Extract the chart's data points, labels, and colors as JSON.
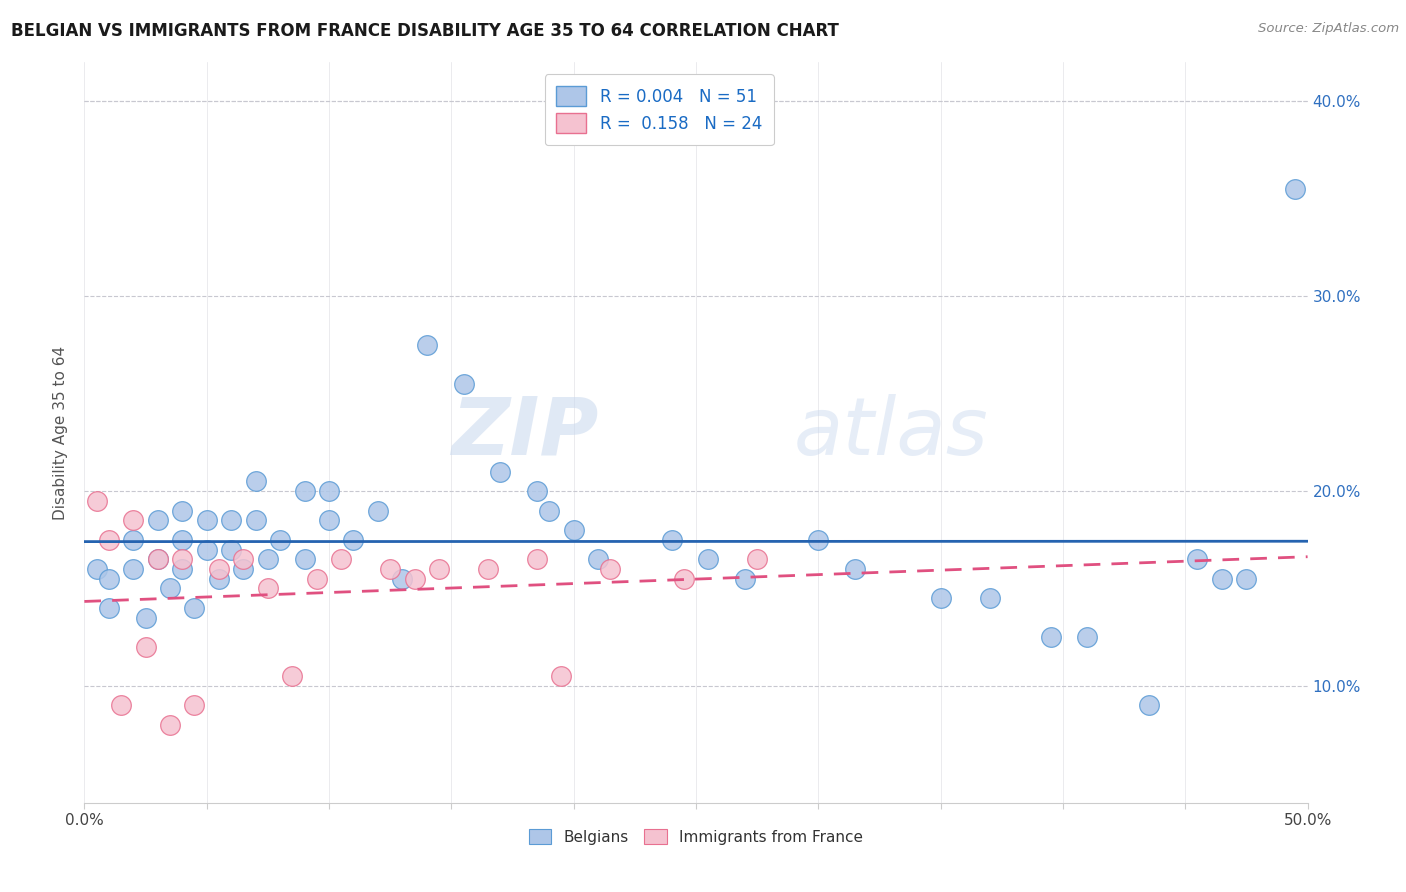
{
  "title": "BELGIAN VS IMMIGRANTS FROM FRANCE DISABILITY AGE 35 TO 64 CORRELATION CHART",
  "source": "Source: ZipAtlas.com",
  "ylabel": "Disability Age 35 to 64",
  "xlim": [
    0.0,
    0.5
  ],
  "ylim": [
    0.04,
    0.42
  ],
  "plot_ylim": [
    0.04,
    0.42
  ],
  "xticks": [
    0.0,
    0.05,
    0.1,
    0.15,
    0.2,
    0.25,
    0.3,
    0.35,
    0.4,
    0.45,
    0.5
  ],
  "xtick_labels_bottom": [
    "0.0%",
    "",
    "",
    "",
    "",
    "",
    "",
    "",
    "",
    "",
    "50.0%"
  ],
  "yticks": [
    0.1,
    0.2,
    0.3,
    0.4
  ],
  "ytick_labels_left": [
    "10.0%",
    "20.0%",
    "30.0%",
    "40.0%"
  ],
  "ytick_labels_right": [
    "10.0%",
    "20.0%",
    "30.0%",
    "40.0%"
  ],
  "belgians_x": [
    0.005,
    0.01,
    0.01,
    0.02,
    0.02,
    0.025,
    0.03,
    0.03,
    0.035,
    0.04,
    0.04,
    0.04,
    0.045,
    0.05,
    0.05,
    0.055,
    0.06,
    0.06,
    0.065,
    0.07,
    0.07,
    0.075,
    0.08,
    0.09,
    0.09,
    0.1,
    0.1,
    0.11,
    0.12,
    0.13,
    0.14,
    0.155,
    0.17,
    0.185,
    0.19,
    0.2,
    0.21,
    0.24,
    0.255,
    0.27,
    0.3,
    0.315,
    0.35,
    0.37,
    0.395,
    0.41,
    0.435,
    0.455,
    0.465,
    0.475,
    0.495
  ],
  "belgians_y": [
    0.16,
    0.155,
    0.14,
    0.175,
    0.16,
    0.135,
    0.185,
    0.165,
    0.15,
    0.19,
    0.175,
    0.16,
    0.14,
    0.185,
    0.17,
    0.155,
    0.185,
    0.17,
    0.16,
    0.205,
    0.185,
    0.165,
    0.175,
    0.165,
    0.2,
    0.2,
    0.185,
    0.175,
    0.19,
    0.155,
    0.275,
    0.255,
    0.21,
    0.2,
    0.19,
    0.18,
    0.165,
    0.175,
    0.165,
    0.155,
    0.175,
    0.16,
    0.145,
    0.145,
    0.125,
    0.125,
    0.09,
    0.165,
    0.155,
    0.155,
    0.355
  ],
  "immigrants_x": [
    0.005,
    0.01,
    0.015,
    0.02,
    0.025,
    0.03,
    0.035,
    0.04,
    0.045,
    0.055,
    0.065,
    0.075,
    0.085,
    0.095,
    0.105,
    0.125,
    0.135,
    0.145,
    0.165,
    0.185,
    0.195,
    0.215,
    0.245,
    0.275
  ],
  "immigrants_y": [
    0.195,
    0.175,
    0.09,
    0.185,
    0.12,
    0.165,
    0.08,
    0.165,
    0.09,
    0.16,
    0.165,
    0.15,
    0.105,
    0.155,
    0.165,
    0.16,
    0.155,
    0.16,
    0.16,
    0.165,
    0.105,
    0.16,
    0.155,
    0.165
  ],
  "belgian_fill_color": "#aec6e8",
  "belgian_edge_color": "#5b9bd5",
  "immigrant_fill_color": "#f5c2d0",
  "immigrant_edge_color": "#e87090",
  "belgian_line_color": "#2563b0",
  "immigrant_line_color": "#e05080",
  "r_belgian": 0.004,
  "n_belgian": 51,
  "r_immigrant": 0.158,
  "n_immigrant": 24,
  "legend_labels": [
    "Belgians",
    "Immigrants from France"
  ],
  "watermark_zip": "ZIP",
  "watermark_atlas": "atlas",
  "background_color": "#ffffff",
  "grid_color": "#c8c8d0",
  "title_color": "#1a1a1a",
  "axis_label_color": "#555555",
  "source_color": "#888888",
  "right_tick_color": "#3070c0"
}
